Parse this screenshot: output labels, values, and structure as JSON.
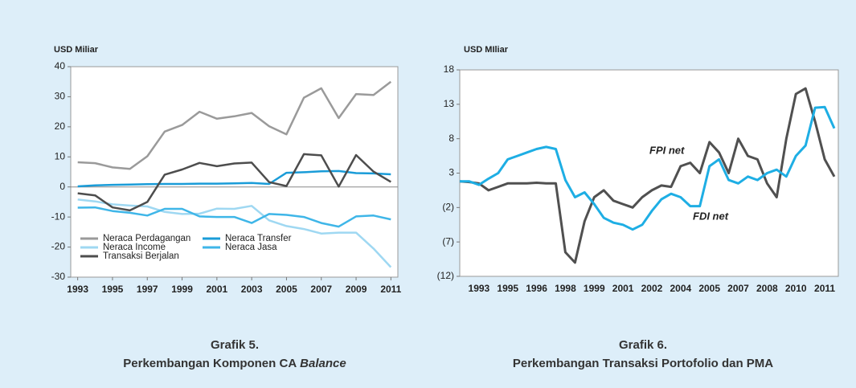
{
  "chart_data": [
    {
      "type": "line",
      "title": "Grafik 5.",
      "subtitle": [
        "Perkembangan Komponen CA",
        "Balance"
      ],
      "y_label": "USD Miliar",
      "x": [
        1993,
        1994,
        1995,
        1996,
        1997,
        1998,
        1999,
        2000,
        2001,
        2002,
        2003,
        2004,
        2005,
        2006,
        2007,
        2008,
        2009,
        2010,
        2011
      ],
      "xlim": [
        1992.6,
        2011.4
      ],
      "xticks": [
        1993,
        1995,
        1997,
        1999,
        2001,
        2003,
        2005,
        2007,
        2009,
        2011
      ],
      "ylim": [
        -30,
        40
      ],
      "yticks": [
        -30,
        -20,
        -10,
        0,
        10,
        20,
        30,
        40
      ],
      "legend": "lower left",
      "series": [
        {
          "name": "Neraca Perdagangan",
          "color": "#9a9a9a",
          "values": [
            8.2,
            7.9,
            6.5,
            6.0,
            10.2,
            18.4,
            20.6,
            25.0,
            22.7,
            23.5,
            24.6,
            20.2,
            17.5,
            29.7,
            32.8,
            22.9,
            30.9,
            30.6,
            35.0
          ]
        },
        {
          "name": "Neraca Transfer",
          "color": "#1a9cd8",
          "values": [
            0.2,
            0.5,
            0.7,
            0.8,
            0.9,
            1.0,
            1.0,
            1.1,
            1.1,
            1.2,
            1.3,
            1.0,
            4.7,
            4.9,
            5.2,
            5.3,
            4.6,
            4.5,
            4.2
          ]
        },
        {
          "name": "Neraca Income",
          "color": "#9fd8f2",
          "values": [
            -4.2,
            -4.8,
            -5.8,
            -6.2,
            -6.5,
            -8.3,
            -9.0,
            -8.9,
            -7.2,
            -7.3,
            -6.3,
            -11.1,
            -13.0,
            -14.0,
            -15.5,
            -15.2,
            -15.2,
            -20.5,
            -26.7
          ]
        },
        {
          "name": "Neraca Jasa",
          "color": "#3fb6e8",
          "values": [
            -6.9,
            -6.8,
            -8.0,
            -8.6,
            -9.5,
            -7.3,
            -7.3,
            -9.8,
            -10.0,
            -10.0,
            -12.0,
            -9.0,
            -9.3,
            -10.0,
            -12.0,
            -13.2,
            -9.8,
            -9.5,
            -10.8
          ]
        },
        {
          "name": "Transaksi Berjalan",
          "color": "#4d4d4d",
          "values": [
            -2.1,
            -2.8,
            -6.8,
            -7.8,
            -5.0,
            4.1,
            5.8,
            8.0,
            6.9,
            7.8,
            8.1,
            1.6,
            0.3,
            10.9,
            10.5,
            0.1,
            10.6,
            5.1,
            1.7
          ]
        }
      ]
    },
    {
      "type": "line",
      "title": "Grafik 6.",
      "subtitle": [
        "Perkembangan Transaksi Portofolio dan PMA"
      ],
      "y_label": "USD MIliar",
      "categories": [
        null,
        null,
        "1993",
        null,
        null,
        "1995",
        null,
        null,
        "1996",
        null,
        null,
        "1998",
        null,
        null,
        "1999",
        null,
        null,
        "2001",
        null,
        null,
        "2002",
        null,
        null,
        "2004",
        null,
        null,
        "2005",
        null,
        null,
        "2007",
        null,
        null,
        "2008",
        null,
        null,
        "2010",
        null,
        null,
        "2011",
        null
      ],
      "ylim": [
        -12,
        18
      ],
      "yticks": [
        {
          "value": -12,
          "label": "(12)"
        },
        {
          "value": -7,
          "label": "(7)"
        },
        {
          "value": -2,
          "label": "(2)"
        },
        3,
        8,
        13,
        18
      ],
      "series": [
        {
          "name": "FPI net",
          "color": "#505050",
          "values": [
            1.8,
            1.7,
            1.5,
            0.5,
            1.0,
            1.5,
            1.5,
            1.5,
            1.6,
            1.5,
            1.5,
            -8.5,
            -10.0,
            -4.0,
            -0.5,
            0.5,
            -1.0,
            -1.5,
            -2.0,
            -0.5,
            0.5,
            1.2,
            1.0,
            4.0,
            4.5,
            3.0,
            7.5,
            6.0,
            3.0,
            8.0,
            5.5,
            5.0,
            1.5,
            -0.5,
            8.0,
            14.5,
            15.3,
            10.5,
            5.0,
            2.5
          ]
        },
        {
          "name": "FDI net",
          "color": "#1eaee4",
          "values": [
            1.8,
            1.8,
            1.3,
            2.2,
            3.0,
            5.0,
            5.5,
            6.0,
            6.5,
            6.8,
            6.5,
            2.0,
            -0.5,
            0.2,
            -1.5,
            -3.5,
            -4.2,
            -4.5,
            -5.2,
            -4.5,
            -2.5,
            -0.8,
            0.0,
            -0.5,
            -1.8,
            -1.8,
            4.0,
            5.0,
            2.0,
            1.5,
            2.5,
            2.0,
            3.0,
            3.5,
            2.5,
            5.5,
            7.0,
            12.5,
            12.6,
            9.5
          ]
        }
      ]
    }
  ]
}
